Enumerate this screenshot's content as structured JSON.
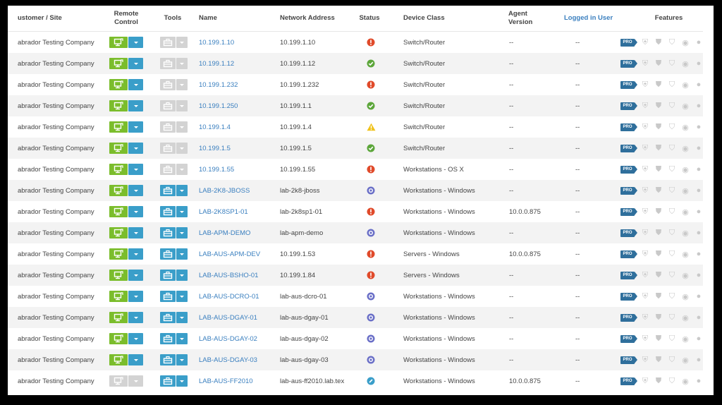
{
  "headers": {
    "customer": "ustomer / Site",
    "remote": "Remote\nControl",
    "tools": "Tools",
    "name": "Name",
    "network": "Network Address",
    "status": "Status",
    "device_class": "Device Class",
    "agent": "Agent\nVersion",
    "logged": "Logged in User",
    "features": "Features"
  },
  "colors": {
    "remote_enabled": "#7bbd2c",
    "tools_enabled": "#3a9ec9",
    "disabled": "#d3d3d3",
    "dropdown_blue": "#3a9ec9",
    "error": "#e04a2a",
    "ok": "#5ca63a",
    "warning": "#f0c21a",
    "pending": "#6a6fc7",
    "info": "#3a9ec9"
  },
  "feature_badge": "PRO",
  "rows": [
    {
      "customer": "abrador Testing Company",
      "remote": "enabled",
      "tools": "disabled",
      "name": "10.199.1.10",
      "address": "10.199.1.10",
      "status": "error",
      "device_class": "Switch/Router",
      "agent": "--",
      "user": "--"
    },
    {
      "customer": "abrador Testing Company",
      "remote": "enabled",
      "tools": "disabled",
      "name": "10.199.1.12",
      "address": "10.199.1.12",
      "status": "ok",
      "device_class": "Switch/Router",
      "agent": "--",
      "user": "--"
    },
    {
      "customer": "abrador Testing Company",
      "remote": "enabled",
      "tools": "disabled",
      "name": "10.199.1.232",
      "address": "10.199.1.232",
      "status": "error",
      "device_class": "Switch/Router",
      "agent": "--",
      "user": "--"
    },
    {
      "customer": "abrador Testing Company",
      "remote": "enabled",
      "tools": "disabled",
      "name": "10.199.1.250",
      "address": "10.199.1.1",
      "status": "ok",
      "device_class": "Switch/Router",
      "agent": "--",
      "user": "--"
    },
    {
      "customer": "abrador Testing Company",
      "remote": "enabled",
      "tools": "disabled",
      "name": "10.199.1.4",
      "address": "10.199.1.4",
      "status": "warning",
      "device_class": "Switch/Router",
      "agent": "--",
      "user": "--"
    },
    {
      "customer": "abrador Testing Company",
      "remote": "enabled",
      "tools": "disabled",
      "name": "10.199.1.5",
      "address": "10.199.1.5",
      "status": "ok",
      "device_class": "Switch/Router",
      "agent": "--",
      "user": "--"
    },
    {
      "customer": "abrador Testing Company",
      "remote": "enabled",
      "tools": "disabled",
      "name": "10.199.1.55",
      "address": "10.199.1.55",
      "status": "error",
      "device_class": "Workstations - OS X",
      "agent": "--",
      "user": "--"
    },
    {
      "customer": "abrador Testing Company",
      "remote": "enabled",
      "tools": "enabled",
      "name": "LAB-2K8-JBOSS",
      "address": "lab-2k8-jboss",
      "status": "pending",
      "device_class": "Workstations - Windows",
      "agent": "--",
      "user": "--"
    },
    {
      "customer": "abrador Testing Company",
      "remote": "enabled",
      "tools": "enabled",
      "name": "LAB-2K8SP1-01",
      "address": "lab-2k8sp1-01",
      "status": "error",
      "device_class": "Workstations - Windows",
      "agent": "10.0.0.875",
      "user": "--"
    },
    {
      "customer": "abrador Testing Company",
      "remote": "enabled",
      "tools": "enabled",
      "name": "LAB-APM-DEMO",
      "address": "lab-apm-demo",
      "status": "pending",
      "device_class": "Workstations - Windows",
      "agent": "--",
      "user": "--"
    },
    {
      "customer": "abrador Testing Company",
      "remote": "enabled",
      "tools": "enabled",
      "name": "LAB-AUS-APM-DEV",
      "address": "10.199.1.53",
      "status": "error",
      "device_class": "Servers - Windows",
      "agent": "10.0.0.875",
      "user": "--"
    },
    {
      "customer": "abrador Testing Company",
      "remote": "enabled",
      "tools": "enabled",
      "name": "LAB-AUS-BSHO-01",
      "address": "10.199.1.84",
      "status": "error",
      "device_class": "Servers - Windows",
      "agent": "--",
      "user": "--"
    },
    {
      "customer": "abrador Testing Company",
      "remote": "enabled",
      "tools": "enabled",
      "name": "LAB-AUS-DCRO-01",
      "address": "lab-aus-dcro-01",
      "status": "pending",
      "device_class": "Workstations - Windows",
      "agent": "--",
      "user": "--"
    },
    {
      "customer": "abrador Testing Company",
      "remote": "enabled",
      "tools": "enabled",
      "name": "LAB-AUS-DGAY-01",
      "address": "lab-aus-dgay-01",
      "status": "pending",
      "device_class": "Workstations - Windows",
      "agent": "--",
      "user": "--"
    },
    {
      "customer": "abrador Testing Company",
      "remote": "enabled",
      "tools": "enabled",
      "name": "LAB-AUS-DGAY-02",
      "address": "lab-aus-dgay-02",
      "status": "pending",
      "device_class": "Workstations - Windows",
      "agent": "--",
      "user": "--"
    },
    {
      "customer": "abrador Testing Company",
      "remote": "enabled",
      "tools": "enabled",
      "name": "LAB-AUS-DGAY-03",
      "address": "lab-aus-dgay-03",
      "status": "pending",
      "device_class": "Workstations - Windows",
      "agent": "--",
      "user": "--"
    },
    {
      "customer": "abrador Testing Company",
      "remote": "disabled",
      "tools": "enabled",
      "name": "LAB-AUS-FF2010",
      "address": "lab-aus-ff2010.lab.tex",
      "status": "info",
      "device_class": "Workstations - Windows",
      "agent": "10.0.0.875",
      "user": "--"
    }
  ]
}
